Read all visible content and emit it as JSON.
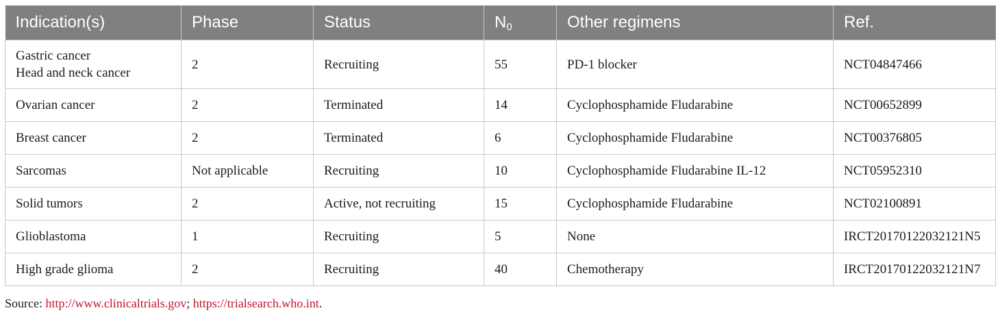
{
  "table": {
    "headers": {
      "indication": "Indication(s)",
      "phase": "Phase",
      "status": "Status",
      "n_main": "N",
      "n_sub": "0",
      "other_regimens": "Other regimens",
      "ref": "Ref."
    },
    "rows": [
      {
        "indication": [
          "Gastric cancer",
          "Head and neck cancer"
        ],
        "phase": "2",
        "status": "Recruiting",
        "n": "55",
        "other_regimens": "PD-1 blocker",
        "ref": "NCT04847466"
      },
      {
        "indication": [
          "Ovarian cancer"
        ],
        "phase": "2",
        "status": "Terminated",
        "n": "14",
        "other_regimens": "Cyclophosphamide Fludarabine",
        "ref": "NCT00652899"
      },
      {
        "indication": [
          "Breast cancer"
        ],
        "phase": "2",
        "status": "Terminated",
        "n": "6",
        "other_regimens": "Cyclophosphamide Fludarabine",
        "ref": "NCT00376805"
      },
      {
        "indication": [
          "Sarcomas"
        ],
        "phase": "Not applicable",
        "status": "Recruiting",
        "n": "10",
        "other_regimens": "Cyclophosphamide Fludarabine IL-12",
        "ref": "NCT05952310"
      },
      {
        "indication": [
          "Solid tumors"
        ],
        "phase": "2",
        "status": "Active, not recruiting",
        "n": "15",
        "other_regimens": "Cyclophosphamide Fludarabine",
        "ref": "NCT02100891"
      },
      {
        "indication": [
          "Glioblastoma"
        ],
        "phase": "1",
        "status": "Recruiting",
        "n": "5",
        "other_regimens": "None",
        "ref": "IRCT20170122032121N5"
      },
      {
        "indication": [
          "High grade glioma"
        ],
        "phase": "2",
        "status": "Recruiting",
        "n": "40",
        "other_regimens": "Chemotherapy",
        "ref": "IRCT20170122032121N7"
      }
    ]
  },
  "source": {
    "label": "Source: ",
    "link1": "http://www.clinicaltrials.gov",
    "separator": "; ",
    "link2": "https://trialsearch.who.int",
    "end": "."
  }
}
